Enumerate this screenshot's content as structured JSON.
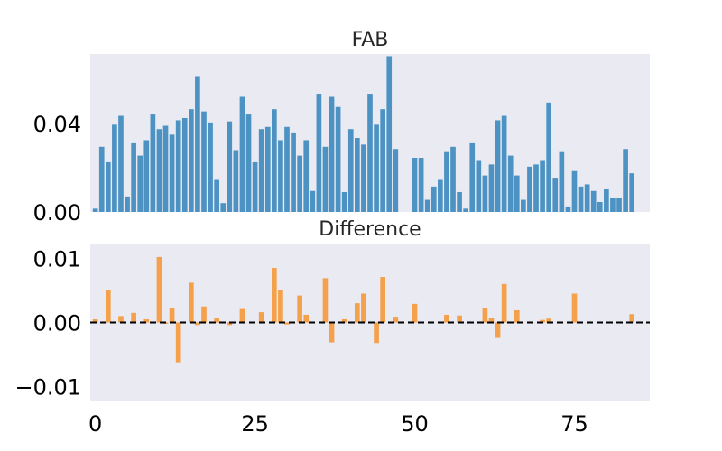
{
  "chart_data": [
    {
      "type": "bar",
      "title": "FAB",
      "color": "#4c92c3",
      "ylim": [
        0,
        0.0715
      ],
      "yticks": [
        0.0,
        0.04
      ],
      "ytick_labels": [
        "0.00",
        "0.04"
      ],
      "xlim": [
        -0.8,
        86.8
      ],
      "x": [
        0,
        1,
        2,
        3,
        4,
        5,
        6,
        7,
        8,
        9,
        10,
        11,
        12,
        13,
        14,
        15,
        16,
        17,
        18,
        19,
        20,
        21,
        22,
        23,
        24,
        25,
        26,
        27,
        28,
        29,
        30,
        31,
        32,
        33,
        34,
        35,
        36,
        37,
        38,
        39,
        40,
        41,
        42,
        43,
        44,
        45,
        46,
        47,
        48,
        49,
        50,
        51,
        52,
        53,
        54,
        55,
        56,
        57,
        58,
        59,
        60,
        61,
        62,
        63,
        64,
        65,
        66,
        67,
        68,
        69,
        70,
        71,
        72,
        73,
        74,
        75,
        76,
        77,
        78,
        79,
        80,
        81,
        82,
        83,
        84,
        85
      ],
      "values": [
        0.0015,
        0.0295,
        0.0225,
        0.0395,
        0.0435,
        0.007,
        0.0315,
        0.0255,
        0.0325,
        0.0445,
        0.0375,
        0.039,
        0.035,
        0.0415,
        0.0425,
        0.0465,
        0.0615,
        0.0455,
        0.0405,
        0.0145,
        0.004,
        0.041,
        0.028,
        0.0525,
        0.0445,
        0.0225,
        0.0375,
        0.0385,
        0.0465,
        0.0325,
        0.0385,
        0.036,
        0.0255,
        0.0325,
        0.0095,
        0.0535,
        0.0295,
        0.0525,
        0.0475,
        0.009,
        0.0375,
        0.0335,
        0.0305,
        0.0535,
        0.0395,
        0.0465,
        0.0705,
        0.0285,
        0.0,
        0.0,
        0.0245,
        0.0245,
        0.0055,
        0.0115,
        0.0145,
        0.0275,
        0.0295,
        0.009,
        0.0015,
        0.0315,
        0.0235,
        0.0165,
        0.0215,
        0.0415,
        0.0435,
        0.0255,
        0.0165,
        0.0055,
        0.0205,
        0.0215,
        0.0235,
        0.0495,
        0.0155,
        0.0275,
        0.0025,
        0.0185,
        0.0115,
        0.0125,
        0.0095,
        0.0045,
        0.0105,
        0.0065,
        0.0065,
        0.0285,
        0.0175,
        0.0
      ]
    },
    {
      "type": "bar",
      "title": "Difference",
      "color": "#f5a04a",
      "ylim": [
        -0.0123,
        0.0123
      ],
      "yticks": [
        -0.01,
        0.0,
        0.01
      ],
      "ytick_labels": [
        "−0.01",
        "0.00",
        "0.01"
      ],
      "xlim": [
        -0.8,
        86.8
      ],
      "xticks": [
        0,
        25,
        50,
        75
      ],
      "xtick_labels": [
        "0",
        "25",
        "50",
        "75"
      ],
      "reference_line": 0,
      "x": [
        0,
        1,
        2,
        3,
        4,
        5,
        6,
        7,
        8,
        9,
        10,
        11,
        12,
        13,
        14,
        15,
        16,
        17,
        18,
        19,
        20,
        21,
        22,
        23,
        24,
        25,
        26,
        27,
        28,
        29,
        30,
        31,
        32,
        33,
        34,
        35,
        36,
        37,
        38,
        39,
        40,
        41,
        42,
        43,
        44,
        45,
        46,
        47,
        48,
        49,
        50,
        51,
        52,
        53,
        54,
        55,
        56,
        57,
        58,
        59,
        60,
        61,
        62,
        63,
        64,
        65,
        66,
        67,
        68,
        69,
        70,
        71,
        72,
        73,
        74,
        75,
        76,
        77,
        78,
        79,
        80,
        81,
        82,
        83,
        84,
        85
      ],
      "values": [
        0.0005,
        0.0,
        0.005,
        0.0,
        0.001,
        0.0,
        0.0015,
        0.0,
        0.0005,
        0.0,
        0.0102,
        -0.0002,
        0.0022,
        -0.0062,
        0.0,
        0.0062,
        -0.0004,
        0.0025,
        0.0,
        0.0007,
        0.0,
        -0.0004,
        0.0,
        0.0021,
        0.0,
        0.0,
        0.0016,
        0.0,
        0.0085,
        0.005,
        -0.0003,
        0.0,
        0.0042,
        0.0012,
        0.0,
        0.0,
        0.0069,
        -0.0031,
        0.0,
        0.0005,
        0.0,
        0.003,
        0.0045,
        0.0,
        -0.0032,
        0.0071,
        0.0,
        0.0009,
        0.0,
        0.0,
        0.0029,
        0.0,
        0.0,
        0.0,
        0.0,
        0.0012,
        0.0,
        0.0011,
        0.0,
        0.0,
        0.0,
        0.0022,
        0.0007,
        -0.0024,
        0.006,
        0.0,
        0.0019,
        0.0,
        0.0,
        0.0,
        0.0004,
        0.0006,
        0.0,
        0.0,
        0.0,
        0.0045,
        0.0,
        0.0,
        0.0,
        0.0,
        0.0,
        0.0,
        0.0,
        0.0,
        0.0013,
        0.0
      ]
    }
  ]
}
